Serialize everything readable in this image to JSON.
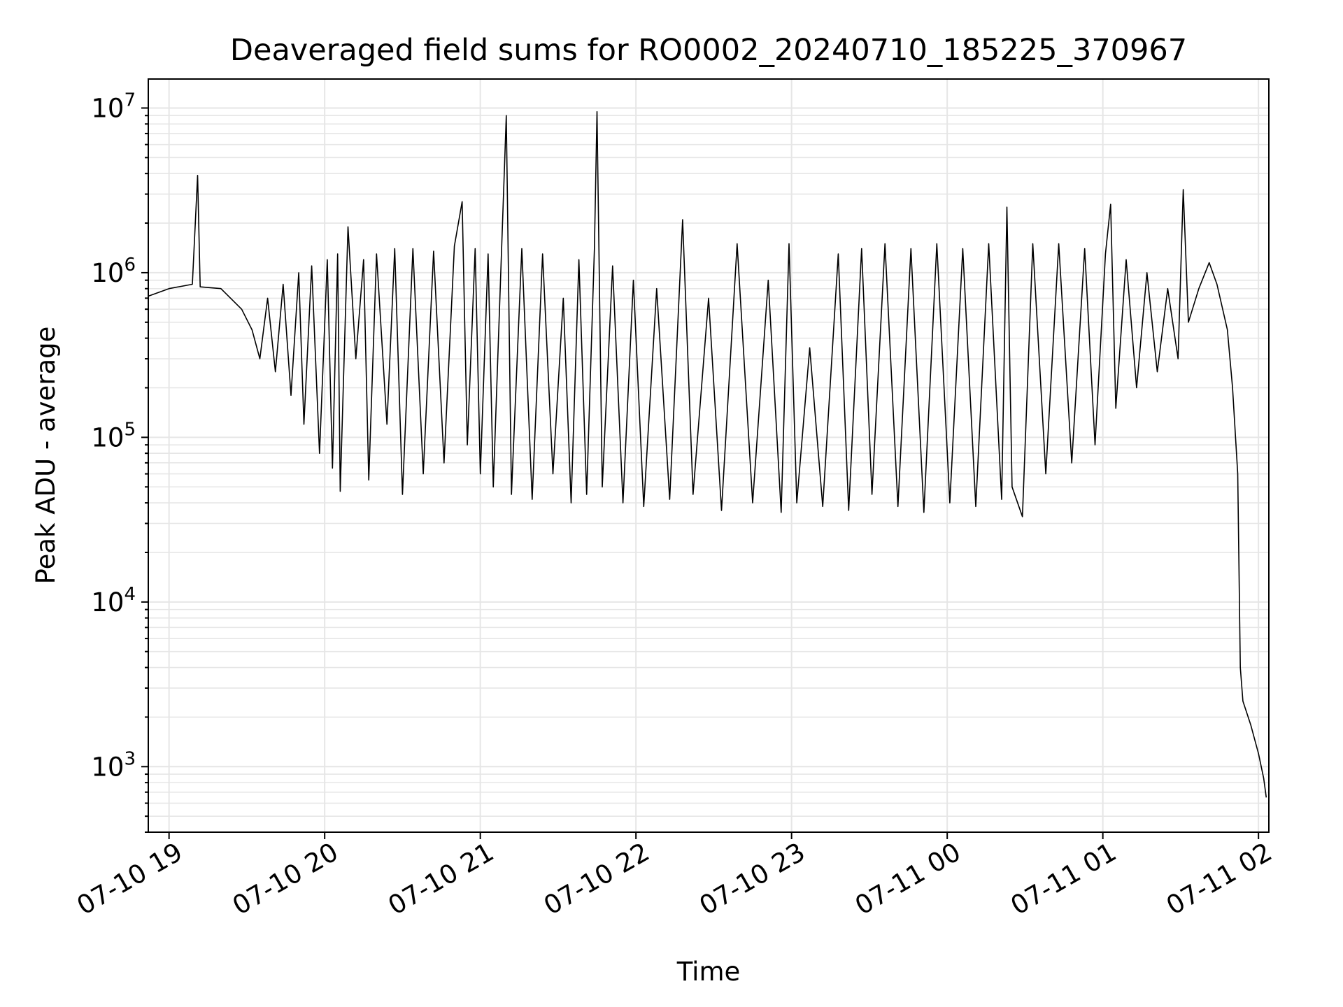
{
  "chart_data": {
    "type": "line",
    "title": "Deaveraged field sums for RO0002_20240710_185225_370967",
    "xlabel": "Time",
    "ylabel": "Peak ADU - average",
    "yscale": "log",
    "xlim": [
      "2024-07-10 18:52",
      "2024-07-11 02:04"
    ],
    "ylim": [
      400,
      15000000
    ],
    "grid": true,
    "line_color": "#000000",
    "grid_color": "#e6e6e6",
    "x_ticks": [
      {
        "value": "2024-07-10 19:00",
        "label": "07-10 19"
      },
      {
        "value": "2024-07-10 20:00",
        "label": "07-10 20"
      },
      {
        "value": "2024-07-10 21:00",
        "label": "07-10 21"
      },
      {
        "value": "2024-07-10 22:00",
        "label": "07-10 22"
      },
      {
        "value": "2024-07-10 23:00",
        "label": "07-10 23"
      },
      {
        "value": "2024-07-11 00:00",
        "label": "07-11 00"
      },
      {
        "value": "2024-07-11 01:00",
        "label": "07-11 01"
      },
      {
        "value": "2024-07-11 02:00",
        "label": "07-11 02"
      }
    ],
    "y_ticks": [
      {
        "value": 1000,
        "base": "10",
        "exp": "3"
      },
      {
        "value": 10000,
        "base": "10",
        "exp": "4"
      },
      {
        "value": 100000,
        "base": "10",
        "exp": "5"
      },
      {
        "value": 1000000,
        "base": "10",
        "exp": "6"
      },
      {
        "value": 10000000,
        "base": "10",
        "exp": "7"
      }
    ],
    "series": [
      {
        "values": [
          [
            "2024-07-10 18:52",
            720000
          ],
          [
            "2024-07-10 19:00",
            800000
          ],
          [
            "2024-07-10 19:09",
            850000
          ],
          [
            "2024-07-10 19:11",
            3900000
          ],
          [
            "2024-07-10 19:12",
            820000
          ],
          [
            "2024-07-10 19:20",
            800000
          ],
          [
            "2024-07-10 19:28",
            600000
          ],
          [
            "2024-07-10 19:32",
            450000
          ],
          [
            "2024-07-10 19:35",
            300000
          ],
          [
            "2024-07-10 19:38",
            700000
          ],
          [
            "2024-07-10 19:41",
            250000
          ],
          [
            "2024-07-10 19:44",
            850000
          ],
          [
            "2024-07-10 19:47",
            180000
          ],
          [
            "2024-07-10 19:50",
            1000000
          ],
          [
            "2024-07-10 19:52",
            120000
          ],
          [
            "2024-07-10 19:55",
            1100000
          ],
          [
            "2024-07-10 19:58",
            80000
          ],
          [
            "2024-07-10 20:01",
            1200000
          ],
          [
            "2024-07-10 20:03",
            65000
          ],
          [
            "2024-07-10 20:05",
            1300000
          ],
          [
            "2024-07-10 20:06",
            47000
          ],
          [
            "2024-07-10 20:09",
            1900000
          ],
          [
            "2024-07-10 20:12",
            300000
          ],
          [
            "2024-07-10 20:15",
            1200000
          ],
          [
            "2024-07-10 20:17",
            55000
          ],
          [
            "2024-07-10 20:20",
            1300000
          ],
          [
            "2024-07-10 20:24",
            120000
          ],
          [
            "2024-07-10 20:27",
            1400000
          ],
          [
            "2024-07-10 20:30",
            45000
          ],
          [
            "2024-07-10 20:34",
            1400000
          ],
          [
            "2024-07-10 20:38",
            60000
          ],
          [
            "2024-07-10 20:42",
            1350000
          ],
          [
            "2024-07-10 20:46",
            70000
          ],
          [
            "2024-07-10 20:50",
            1450000
          ],
          [
            "2024-07-10 20:53",
            2700000
          ],
          [
            "2024-07-10 20:55",
            90000
          ],
          [
            "2024-07-10 20:58",
            1400000
          ],
          [
            "2024-07-10 21:00",
            60000
          ],
          [
            "2024-07-10 21:03",
            1300000
          ],
          [
            "2024-07-10 21:05",
            50000
          ],
          [
            "2024-07-10 21:10",
            9000000
          ],
          [
            "2024-07-10 21:12",
            45000
          ],
          [
            "2024-07-10 21:16",
            1400000
          ],
          [
            "2024-07-10 21:20",
            42000
          ],
          [
            "2024-07-10 21:24",
            1300000
          ],
          [
            "2024-07-10 21:28",
            60000
          ],
          [
            "2024-07-10 21:32",
            700000
          ],
          [
            "2024-07-10 21:35",
            40000
          ],
          [
            "2024-07-10 21:38",
            1200000
          ],
          [
            "2024-07-10 21:41",
            45000
          ],
          [
            "2024-07-10 21:44",
            1400000
          ],
          [
            "2024-07-10 21:45",
            9500000
          ],
          [
            "2024-07-10 21:47",
            50000
          ],
          [
            "2024-07-10 21:51",
            1100000
          ],
          [
            "2024-07-10 21:55",
            40000
          ],
          [
            "2024-07-10 21:59",
            900000
          ],
          [
            "2024-07-10 22:03",
            38000
          ],
          [
            "2024-07-10 22:08",
            800000
          ],
          [
            "2024-07-10 22:13",
            42000
          ],
          [
            "2024-07-10 22:18",
            2100000
          ],
          [
            "2024-07-10 22:22",
            45000
          ],
          [
            "2024-07-10 22:28",
            700000
          ],
          [
            "2024-07-10 22:33",
            36000
          ],
          [
            "2024-07-10 22:39",
            1500000
          ],
          [
            "2024-07-10 22:45",
            40000
          ],
          [
            "2024-07-10 22:51",
            900000
          ],
          [
            "2024-07-10 22:56",
            35000
          ],
          [
            "2024-07-10 22:59",
            1500000
          ],
          [
            "2024-07-10 23:02",
            40000
          ],
          [
            "2024-07-10 23:07",
            350000
          ],
          [
            "2024-07-10 23:12",
            38000
          ],
          [
            "2024-07-10 23:18",
            1300000
          ],
          [
            "2024-07-10 23:22",
            36000
          ],
          [
            "2024-07-10 23:27",
            1400000
          ],
          [
            "2024-07-10 23:31",
            45000
          ],
          [
            "2024-07-10 23:36",
            1500000
          ],
          [
            "2024-07-10 23:41",
            38000
          ],
          [
            "2024-07-10 23:46",
            1400000
          ],
          [
            "2024-07-10 23:51",
            35000
          ],
          [
            "2024-07-10 23:56",
            1500000
          ],
          [
            "2024-07-11 00:01",
            40000
          ],
          [
            "2024-07-11 00:06",
            1400000
          ],
          [
            "2024-07-11 00:11",
            38000
          ],
          [
            "2024-07-11 00:16",
            1500000
          ],
          [
            "2024-07-11 00:21",
            42000
          ],
          [
            "2024-07-11 00:23",
            2500000
          ],
          [
            "2024-07-11 00:25",
            50000
          ],
          [
            "2024-07-11 00:29",
            33000
          ],
          [
            "2024-07-11 00:33",
            1500000
          ],
          [
            "2024-07-11 00:38",
            60000
          ],
          [
            "2024-07-11 00:43",
            1500000
          ],
          [
            "2024-07-11 00:48",
            70000
          ],
          [
            "2024-07-11 00:53",
            1400000
          ],
          [
            "2024-07-11 00:57",
            90000
          ],
          [
            "2024-07-11 01:01",
            1300000
          ],
          [
            "2024-07-11 01:03",
            2600000
          ],
          [
            "2024-07-11 01:05",
            150000
          ],
          [
            "2024-07-11 01:09",
            1200000
          ],
          [
            "2024-07-11 01:13",
            200000
          ],
          [
            "2024-07-11 01:17",
            1000000
          ],
          [
            "2024-07-11 01:21",
            250000
          ],
          [
            "2024-07-11 01:25",
            800000
          ],
          [
            "2024-07-11 01:29",
            300000
          ],
          [
            "2024-07-11 01:31",
            3200000
          ],
          [
            "2024-07-11 01:33",
            500000
          ],
          [
            "2024-07-11 01:37",
            800000
          ],
          [
            "2024-07-11 01:41",
            1150000
          ],
          [
            "2024-07-11 01:44",
            850000
          ],
          [
            "2024-07-11 01:48",
            450000
          ],
          [
            "2024-07-11 01:50",
            200000
          ],
          [
            "2024-07-11 01:52",
            60000
          ],
          [
            "2024-07-11 01:53",
            4000
          ],
          [
            "2024-07-11 01:54",
            2500
          ],
          [
            "2024-07-11 01:57",
            1800
          ],
          [
            "2024-07-11 02:00",
            1200
          ],
          [
            "2024-07-11 02:02",
            850
          ],
          [
            "2024-07-11 02:03",
            650
          ]
        ]
      }
    ]
  }
}
